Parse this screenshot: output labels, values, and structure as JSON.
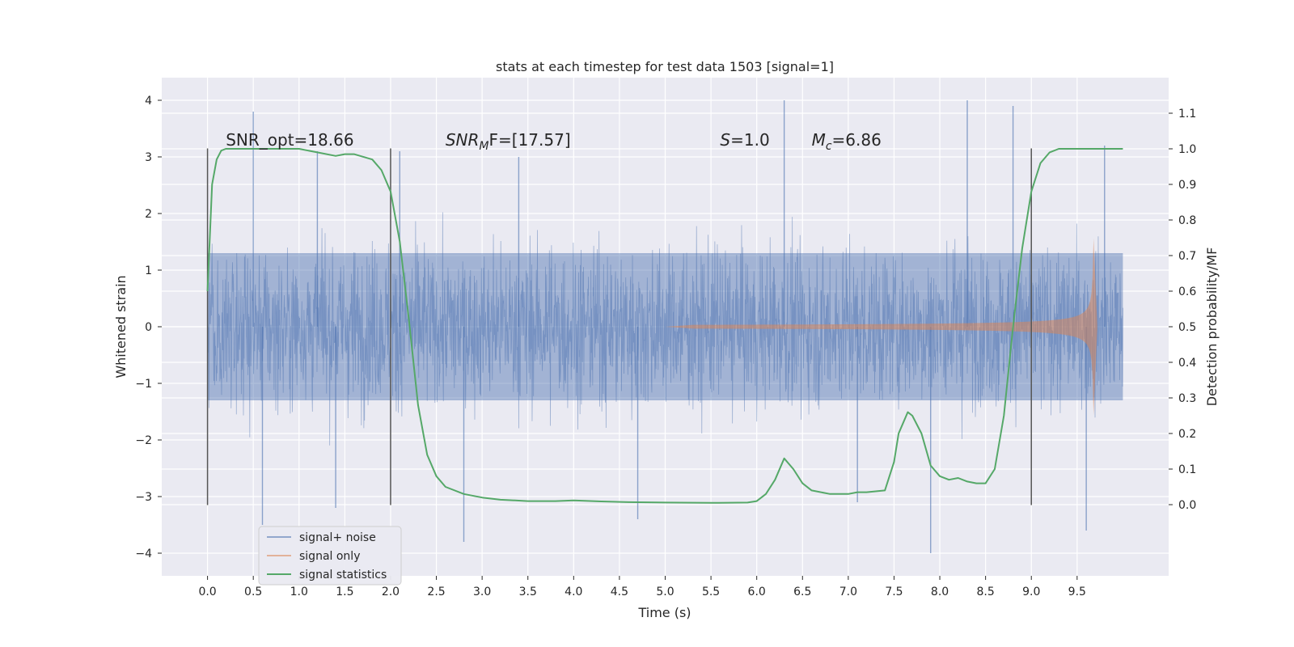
{
  "chart_data": {
    "type": "line",
    "title": "stats at each timestep for test data 1503 [signal=1]",
    "xlabel": "Time (s)",
    "ylabel": "Whitened strain",
    "ylabel_right": "Detection probability/MF",
    "xlim": [
      -0.5,
      10.5
    ],
    "ylim": [
      -4.4,
      4.4
    ],
    "ylim_right": [
      -0.2,
      1.2
    ],
    "x_ticks": [
      "0.0",
      "0.5",
      "1.0",
      "1.5",
      "2.0",
      "2.5",
      "3.0",
      "3.5",
      "4.0",
      "4.5",
      "5.0",
      "5.5",
      "6.0",
      "6.5",
      "7.0",
      "7.5",
      "8.0",
      "8.5",
      "9.0",
      "9.5"
    ],
    "y_ticks": [
      "−4",
      "−3",
      "−2",
      "−1",
      "0",
      "1",
      "2",
      "3",
      "4"
    ],
    "y_ticks_right": [
      "0.0",
      "0.1",
      "0.2",
      "0.3",
      "0.4",
      "0.5",
      "0.6",
      "0.7",
      "0.8",
      "0.9",
      "1.0",
      "1.1"
    ],
    "grid": true,
    "legend_position": "lower-left",
    "colors": {
      "signal_noise": "#4c72b0",
      "signal_only": "#dd8452",
      "signal_statistics": "#55a868",
      "vlines": "#555555",
      "background": "#eaeaf2"
    },
    "annotations": [
      {
        "label": "SNR_opt=18.66",
        "x": 0.2,
        "y": 3.2
      },
      {
        "label": "SNR",
        "sub": "M",
        "rest": "F=[17.57]",
        "italic": true,
        "x": 2.6,
        "y": 3.2
      },
      {
        "label": "S",
        "rest": "=1.0",
        "italic": true,
        "x": 5.6,
        "y": 3.2
      },
      {
        "label": "M",
        "sub": "c",
        "rest": "=6.86",
        "italic": true,
        "x": 6.6,
        "y": 3.2
      }
    ],
    "vertical_lines": [
      {
        "x": 0.0,
        "ymin": -3.15,
        "ymax": 3.15
      },
      {
        "x": 2.0,
        "ymin": -3.15,
        "ymax": 3.15
      },
      {
        "x": 9.0,
        "ymin": -3.15,
        "ymax": 3.15
      }
    ],
    "series": [
      {
        "name": "signal+ noise",
        "kind": "noise_band",
        "x_range": [
          0.0,
          10.0
        ],
        "amplitude_band": [
          -1.3,
          1.3
        ],
        "spikes": [
          {
            "x": 0.5,
            "y": 3.8
          },
          {
            "x": 0.6,
            "y": -3.5
          },
          {
            "x": 1.2,
            "y": 3.1
          },
          {
            "x": 1.4,
            "y": -3.2
          },
          {
            "x": 2.1,
            "y": 3.1
          },
          {
            "x": 2.8,
            "y": -3.8
          },
          {
            "x": 3.4,
            "y": 3.0
          },
          {
            "x": 4.7,
            "y": -3.4
          },
          {
            "x": 6.3,
            "y": 4.0
          },
          {
            "x": 7.1,
            "y": -3.1
          },
          {
            "x": 7.9,
            "y": -4.0
          },
          {
            "x": 8.3,
            "y": 4.0
          },
          {
            "x": 8.8,
            "y": 3.9
          },
          {
            "x": 9.6,
            "y": -3.6
          },
          {
            "x": 9.8,
            "y": 3.2
          }
        ]
      },
      {
        "name": "signal only",
        "kind": "chirp",
        "x_range": [
          5.0,
          9.7
        ],
        "peak_amplitude": 1.8,
        "merger_time": 9.68
      },
      {
        "name": "signal statistics",
        "kind": "line",
        "axis": "right",
        "x": [
          0.0,
          0.05,
          0.1,
          0.15,
          0.2,
          0.3,
          0.5,
          0.8,
          1.0,
          1.2,
          1.4,
          1.5,
          1.6,
          1.8,
          1.9,
          2.0,
          2.1,
          2.2,
          2.3,
          2.4,
          2.5,
          2.6,
          2.8,
          3.0,
          3.2,
          3.5,
          3.8,
          4.0,
          4.3,
          4.6,
          5.0,
          5.5,
          5.9,
          6.0,
          6.1,
          6.2,
          6.3,
          6.4,
          6.5,
          6.6,
          6.8,
          7.0,
          7.1,
          7.2,
          7.4,
          7.5,
          7.55,
          7.6,
          7.65,
          7.7,
          7.8,
          7.9,
          8.0,
          8.1,
          8.2,
          8.3,
          8.4,
          8.5,
          8.6,
          8.7,
          8.8,
          8.9,
          9.0,
          9.1,
          9.2,
          9.3,
          9.5,
          10.0
        ],
        "values": [
          0.6,
          0.9,
          0.97,
          0.995,
          1.0,
          1.0,
          1.0,
          1.0,
          1.0,
          0.99,
          0.98,
          0.985,
          0.985,
          0.97,
          0.94,
          0.88,
          0.74,
          0.52,
          0.28,
          0.14,
          0.08,
          0.05,
          0.03,
          0.02,
          0.014,
          0.01,
          0.01,
          0.012,
          0.009,
          0.007,
          0.006,
          0.005,
          0.006,
          0.01,
          0.03,
          0.07,
          0.13,
          0.1,
          0.06,
          0.04,
          0.03,
          0.03,
          0.035,
          0.035,
          0.04,
          0.12,
          0.2,
          0.23,
          0.26,
          0.25,
          0.2,
          0.11,
          0.08,
          0.07,
          0.075,
          0.065,
          0.06,
          0.06,
          0.1,
          0.25,
          0.5,
          0.72,
          0.88,
          0.96,
          0.99,
          1.0,
          1.0,
          1.0
        ]
      }
    ]
  }
}
